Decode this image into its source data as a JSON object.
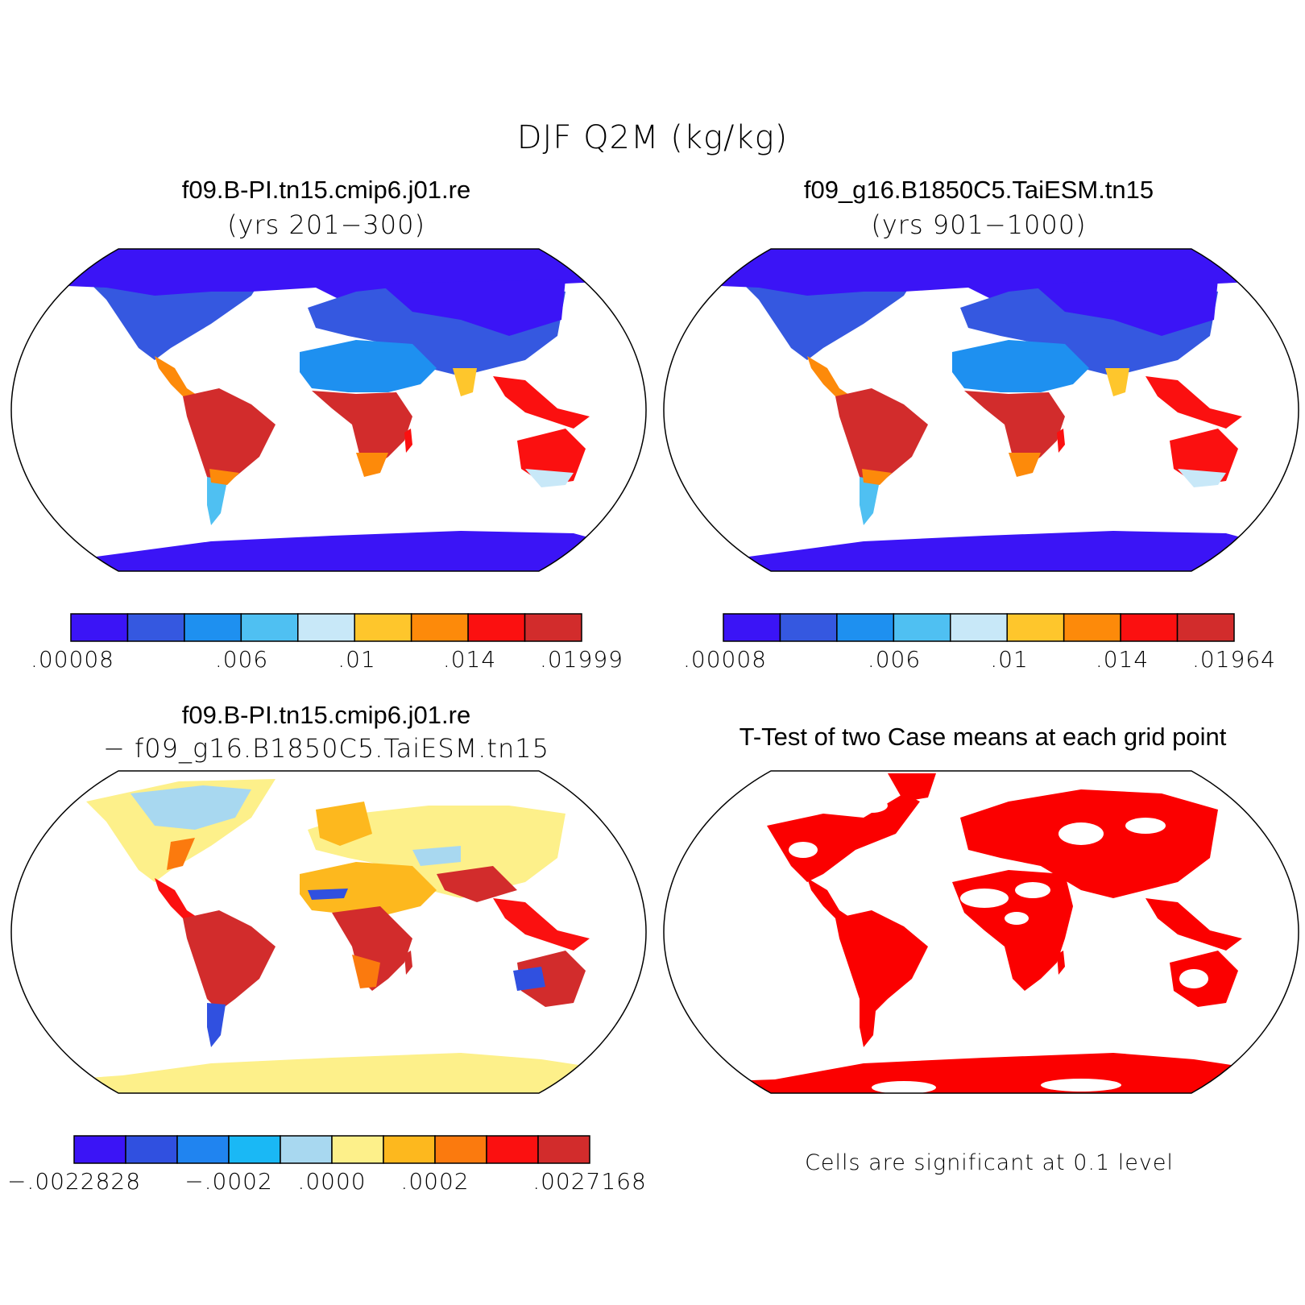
{
  "title": "DJF Q2M (kg/kg)",
  "panels": {
    "case1": {
      "title": "f09.B-PI.tn15.cmip6.j01.re",
      "years": "(yrs 201−300)"
    },
    "case2": {
      "title": "f09_g16.B1850C5.TaiESM.tn15",
      "years": "(yrs 901−1000)"
    },
    "diff": {
      "title_line1": "f09.B-PI.tn15.cmip6.j01.re",
      "title_line2": "− f09_g16.B1850C5.TaiESM.tn15"
    },
    "ttest": {
      "title": "T-Test of two Case means at each grid point",
      "note": "Cells are significant at 0.1 level"
    }
  },
  "colorbars": {
    "abs": {
      "colors": [
        "#3b14f6",
        "#3558e0",
        "#1e90f0",
        "#4fc0f2",
        "#c8e8f8",
        "#fec62c",
        "#fd8a0a",
        "#fb1010",
        "#d22c2c"
      ],
      "case1_labels": [
        ".00008",
        ".006",
        ".01",
        ".014",
        ".01999"
      ],
      "case2_labels": [
        ".00008",
        ".006",
        ".01",
        ".014",
        ".01964"
      ]
    },
    "diff": {
      "colors": [
        "#3b14f6",
        "#3050e0",
        "#2084f0",
        "#1ab8f5",
        "#a8d8f0",
        "#fdf08a",
        "#fdb81e",
        "#fb7a0e",
        "#fb1010",
        "#d22c2c"
      ],
      "labels": [
        "−.0022828",
        "−.0002",
        ".0000",
        ".0002",
        ".0027168"
      ]
    }
  },
  "map_colors": {
    "polar": "#3b14f6",
    "cold": "#3558e0",
    "cool": "#1e90f0",
    "mild": "#4fc0f2",
    "warm": "#fd8a0a",
    "hot": "#fb1010",
    "tropic": "#d22c2c",
    "diff_small": "#fdf08a",
    "diff_neg": "#a8d8f0",
    "diff_pos": "#fdb81e",
    "diff_high": "#d22c2c",
    "signif": "#fb0000"
  }
}
